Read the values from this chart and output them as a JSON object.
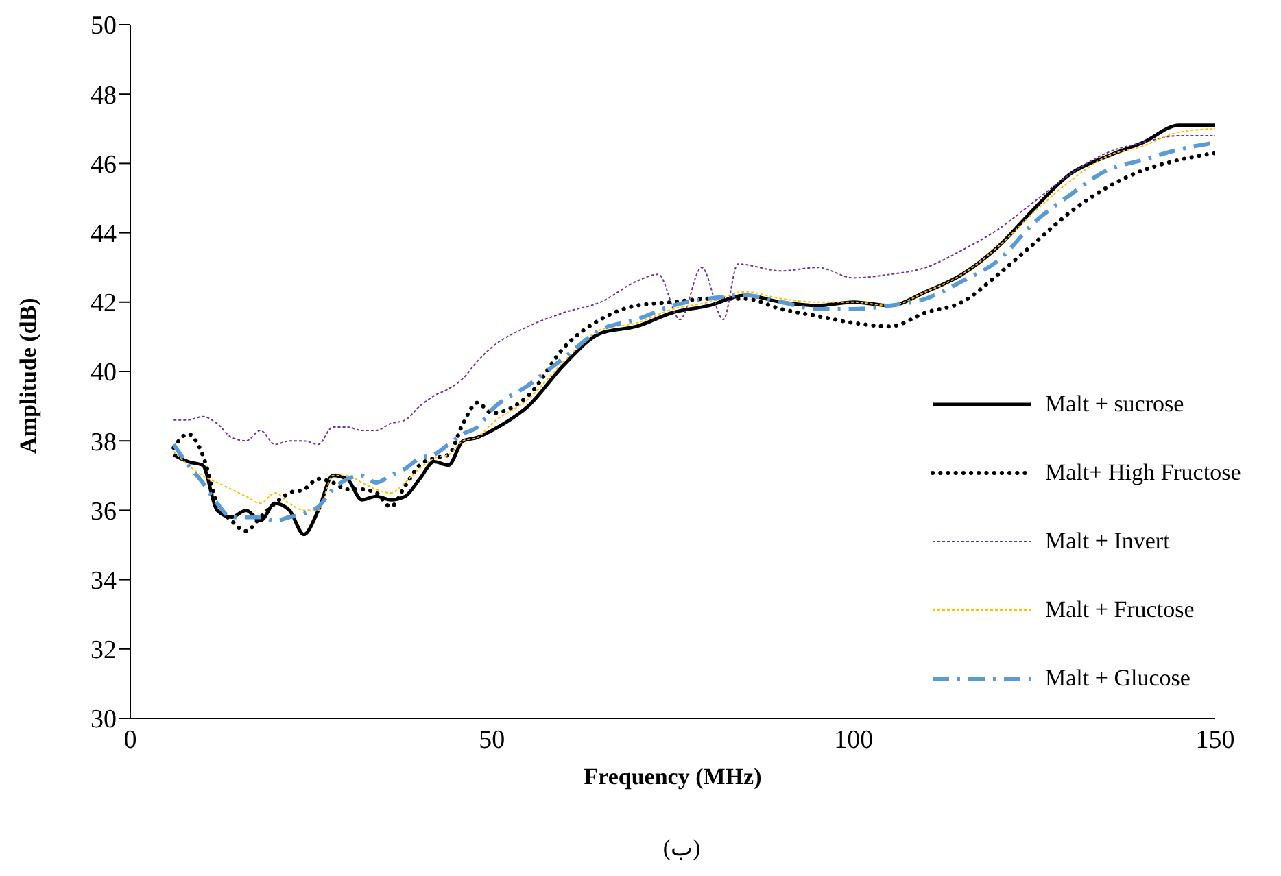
{
  "chart_data": {
    "type": "line",
    "xlabel": "Frequency (MHz)",
    "ylabel": "Amplitude (dB)",
    "xlim": [
      0,
      150
    ],
    "xticks": [
      0,
      50,
      100,
      150
    ],
    "ylim": [
      30,
      50
    ],
    "yticks": [
      30,
      32,
      34,
      36,
      38,
      40,
      42,
      44,
      46,
      48,
      50
    ],
    "grid": false,
    "legend": "right",
    "marker": "none",
    "annotations": [
      "(ب)"
    ],
    "x": [
      6,
      8,
      10,
      12,
      14,
      16,
      18,
      20,
      22,
      24,
      26,
      28,
      30,
      32,
      34,
      36,
      38,
      40,
      42,
      44,
      46,
      48,
      50,
      55,
      60,
      65,
      70,
      75,
      80,
      85,
      90,
      95,
      100,
      105,
      110,
      115,
      120,
      125,
      130,
      135,
      140,
      145,
      150
    ],
    "series": [
      {
        "name": "Malt + sucrose",
        "color": "#000000",
        "line_style": "solid",
        "values": [
          37.6,
          37.4,
          37.3,
          36.0,
          35.8,
          36.0,
          35.7,
          36.2,
          36.0,
          35.3,
          36.0,
          37.0,
          36.9,
          36.3,
          36.4,
          36.3,
          36.4,
          36.9,
          37.4,
          37.3,
          38.0,
          38.1,
          38.3,
          39.0,
          40.2,
          41.1,
          41.3,
          41.7,
          41.9,
          42.2,
          42.0,
          41.9,
          42.0,
          41.9,
          42.3,
          42.8,
          43.6,
          44.7,
          45.7,
          46.2,
          46.6,
          47.1,
          47.1
        ]
      },
      {
        "name": "Malt+ High Fructose",
        "color": "#000000",
        "line_style": "dotted",
        "values": [
          37.8,
          38.2,
          37.6,
          36.2,
          35.7,
          35.4,
          35.8,
          36.2,
          36.5,
          36.6,
          36.9,
          36.8,
          36.6,
          36.6,
          36.5,
          36.1,
          36.7,
          37.3,
          37.5,
          37.6,
          38.5,
          39.1,
          38.8,
          39.3,
          40.7,
          41.5,
          41.9,
          42.0,
          42.1,
          42.1,
          41.8,
          41.6,
          41.4,
          41.3,
          41.7,
          42.0,
          42.8,
          43.7,
          44.6,
          45.3,
          45.8,
          46.1,
          46.3
        ]
      },
      {
        "name": "Malt + Invert",
        "color": "#7030a0",
        "line_style": "dotted",
        "x": [
          6,
          8,
          10,
          12,
          14,
          16,
          18,
          20,
          22,
          24,
          26,
          28,
          30,
          32,
          34,
          36,
          38,
          40,
          42,
          44,
          46,
          48,
          50,
          55,
          60,
          65,
          70,
          73,
          76,
          79,
          82,
          84,
          90,
          95,
          100,
          105,
          110,
          115,
          120,
          125,
          130,
          135,
          140,
          145,
          150
        ],
        "values": [
          38.6,
          38.6,
          38.7,
          38.5,
          38.1,
          38.0,
          38.3,
          37.9,
          38.0,
          38.0,
          37.9,
          38.4,
          38.4,
          38.3,
          38.3,
          38.5,
          38.6,
          39.0,
          39.3,
          39.5,
          39.8,
          40.3,
          40.7,
          41.3,
          41.7,
          42.0,
          42.6,
          42.8,
          41.5,
          43.0,
          41.5,
          43.1,
          42.9,
          43.0,
          42.7,
          42.8,
          43.0,
          43.5,
          44.1,
          44.9,
          45.7,
          46.3,
          46.6,
          46.8,
          46.8
        ]
      },
      {
        "name": "Malt + Fructose",
        "color": "#ffc000",
        "line_style": "dotted",
        "values": [
          37.7,
          37.3,
          37.0,
          36.8,
          36.6,
          36.4,
          36.2,
          36.5,
          36.2,
          36.0,
          36.0,
          37.0,
          37.0,
          36.8,
          36.6,
          36.5,
          36.8,
          37.2,
          37.5,
          37.6,
          38.0,
          38.1,
          38.5,
          39.2,
          40.3,
          41.2,
          41.4,
          41.8,
          42.0,
          42.3,
          42.1,
          42.0,
          42.0,
          41.9,
          42.3,
          42.8,
          43.6,
          44.6,
          45.5,
          46.2,
          46.5,
          46.9,
          47.0
        ]
      },
      {
        "name": "Malt + Glucose",
        "color": "#5b9bd5",
        "line_style": "dashed",
        "values": [
          37.9,
          37.3,
          36.8,
          36.2,
          35.8,
          35.8,
          35.8,
          35.7,
          35.8,
          35.9,
          36.1,
          36.6,
          36.9,
          37.0,
          36.8,
          37.0,
          37.2,
          37.5,
          37.6,
          37.9,
          38.2,
          38.4,
          38.9,
          39.6,
          40.4,
          41.2,
          41.5,
          41.9,
          42.1,
          42.2,
          42.0,
          41.8,
          41.8,
          41.9,
          42.1,
          42.6,
          43.2,
          44.3,
          45.1,
          45.8,
          46.1,
          46.4,
          46.6
        ]
      }
    ]
  }
}
